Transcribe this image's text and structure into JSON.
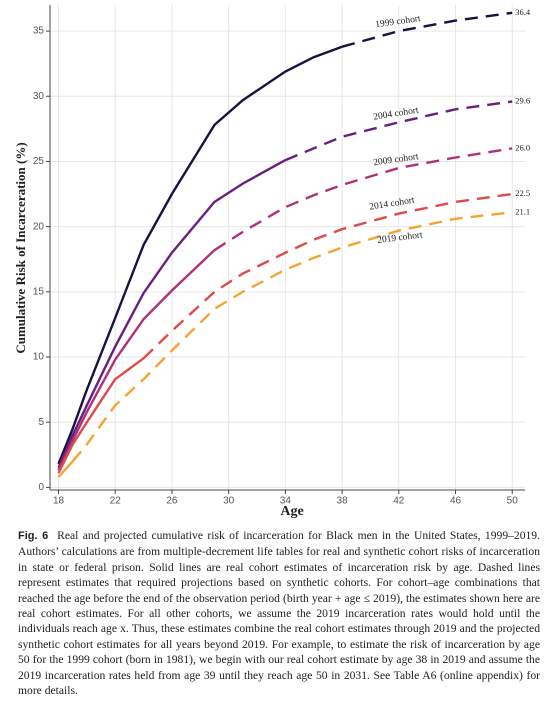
{
  "chart_data": {
    "type": "line",
    "xlabel": "Age",
    "ylabel": "Cumulative Risk of Incarceration (%)",
    "x": [
      18,
      19,
      20,
      22,
      24,
      26,
      29,
      31,
      34,
      36,
      38,
      42,
      46,
      50
    ],
    "xlim": [
      17.4,
      50.9
    ],
    "xticks": [
      18,
      22,
      26,
      30,
      34,
      38,
      42,
      46,
      50
    ],
    "ylim": [
      -0.2,
      37
    ],
    "yticks": [
      0,
      5,
      10,
      15,
      20,
      25,
      30,
      35
    ],
    "grid": true,
    "series": [
      {
        "name": "1999 cohort",
        "color": "#1b1044",
        "values": [
          1.8,
          4.5,
          7.5,
          13,
          18.6,
          22.5,
          27.8,
          29.7,
          31.9,
          33.0,
          33.8,
          null,
          null,
          null
        ],
        "projected": [
          null,
          null,
          null,
          null,
          null,
          null,
          null,
          null,
          null,
          null,
          33.8,
          35.0,
          35.8,
          36.4
        ],
        "value_labels": [
          null,
          null,
          null,
          null,
          null,
          null,
          null,
          null,
          null,
          null,
          null,
          null,
          null,
          "36.4"
        ]
      },
      {
        "name": "2004 cohort",
        "color": "#6a1f7e",
        "values": [
          1.5,
          4,
          6.3,
          10.8,
          14.9,
          18.0,
          21.9,
          23.3,
          25.1,
          null,
          null,
          null,
          null,
          null
        ],
        "projected": [
          null,
          null,
          null,
          null,
          null,
          null,
          null,
          null,
          25.1,
          26.0,
          26.9,
          28.0,
          29.0,
          29.6
        ],
        "value_labels": [
          null,
          null,
          null,
          null,
          null,
          null,
          null,
          null,
          null,
          null,
          null,
          null,
          null,
          "29.6"
        ]
      },
      {
        "name": "2009 cohort",
        "color": "#b0307a",
        "values": [
          1.3,
          3.6,
          5.8,
          9.8,
          12.9,
          15.1,
          18.2,
          null,
          null,
          null,
          null,
          null,
          null,
          null
        ],
        "projected": [
          null,
          null,
          null,
          null,
          null,
          null,
          18.2,
          19.6,
          21.5,
          22.4,
          23.2,
          24.5,
          25.3,
          26.0
        ],
        "value_labels": [
          null,
          null,
          null,
          null,
          null,
          null,
          null,
          null,
          null,
          null,
          null,
          null,
          null,
          "26.0"
        ]
      },
      {
        "name": "2014 cohort",
        "color": "#de4b4b",
        "values": [
          1.1,
          3.3,
          5.0,
          8.3,
          9.9,
          null,
          null,
          null,
          null,
          null,
          null,
          null,
          null,
          null
        ],
        "projected": [
          null,
          null,
          null,
          null,
          9.9,
          12.0,
          15.0,
          16.4,
          18.0,
          19.0,
          19.8,
          21.0,
          21.9,
          22.5
        ],
        "value_labels": [
          null,
          null,
          null,
          null,
          null,
          null,
          null,
          null,
          null,
          null,
          null,
          null,
          null,
          "22.5"
        ]
      },
      {
        "name": "2019 cohort",
        "color": "#f5a431",
        "values": [
          0.8,
          2.0,
          null,
          null,
          null,
          null,
          null,
          null,
          null,
          null,
          null,
          null,
          null,
          null
        ],
        "projected": [
          null,
          2.0,
          3.3,
          6.3,
          8.3,
          10.5,
          13.7,
          15.0,
          16.7,
          17.6,
          18.4,
          19.7,
          20.6,
          21.1
        ],
        "value_labels": [
          null,
          null,
          null,
          null,
          null,
          null,
          null,
          null,
          null,
          null,
          null,
          null,
          null,
          "21.1"
        ]
      }
    ]
  },
  "caption": {
    "label": "Fig. 6",
    "text": "Real and projected cumulative risk of incarceration for Black men in the United States, 1999–2019. Authors’ calculations are from multiple-decrement life tables for real and synthetic cohort risks of incarceration in state or federal prison. Solid lines are real cohort estimates of incarceration risk by age. Dashed lines represent estimates that required projections based on synthetic cohorts. For cohort–age combinations that reached the age before the end of the observation period (birth year + age ≤ 2019), the estimates shown here are real cohort estimates. For all other cohorts, we assume the 2019 incarceration rates would hold until the individuals reach age x. Thus, these estimates combine the real cohort estimates through 2019 and the projected synthetic cohort estimates for all years beyond 2019. For example, to estimate the risk of incarceration by age 50 for the 1999 cohort (born in 1981), we begin with our real cohort estimate by age 38 in 2019 and assume the 2019 incarceration rates held from age 39 until they reach age 50 in 2031. See Table A6 (online appendix) for more details."
  }
}
